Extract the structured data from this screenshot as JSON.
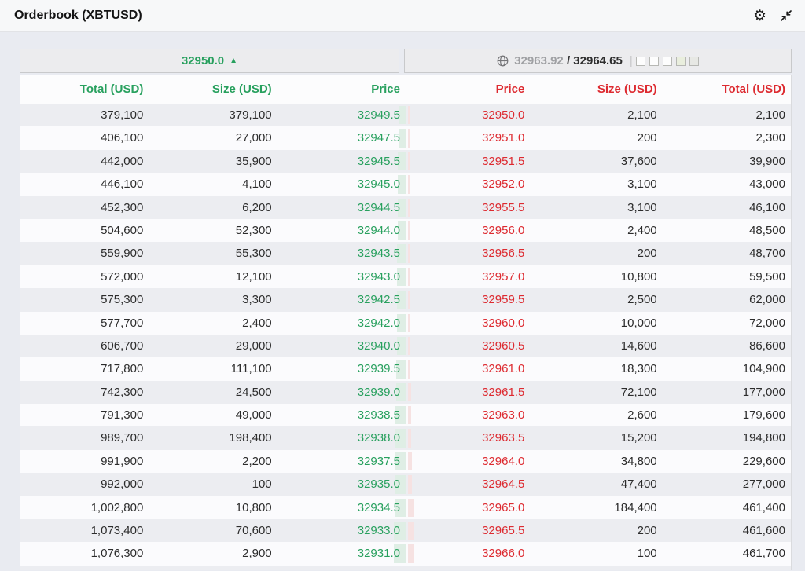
{
  "window": {
    "title": "Orderbook (XBTUSD)"
  },
  "toolbar": {
    "settings_icon": "gear",
    "collapse_icon": "compress-arrows"
  },
  "ticker": {
    "last_price": "32950.0",
    "last_direction": "up",
    "up_arrow_glyph": "▲",
    "globe_icon": "globe",
    "secondary_price": "32963.92",
    "slash": "/",
    "primary_price": "32964.65",
    "separator": "|",
    "depth_boxes": [
      "empty",
      "empty",
      "empty",
      "tint-green",
      "tint-gray"
    ]
  },
  "colors": {
    "bid_green": "#28a05e",
    "ask_red": "#dd2a30",
    "bid_bar": "#dfeee5",
    "ask_bar": "#f6e2e2",
    "row_stripe": "#ecedf1"
  },
  "orderbook": {
    "bid_headers": [
      "Total (USD)",
      "Size (USD)",
      "Price"
    ],
    "ask_headers": [
      "Price",
      "Size (USD)",
      "Total (USD)"
    ],
    "bids": [
      {
        "total": "379,100",
        "size": "379,100",
        "price": "32949.5"
      },
      {
        "total": "406,100",
        "size": "27,000",
        "price": "32947.5"
      },
      {
        "total": "442,000",
        "size": "35,900",
        "price": "32945.5"
      },
      {
        "total": "446,100",
        "size": "4,100",
        "price": "32945.0"
      },
      {
        "total": "452,300",
        "size": "6,200",
        "price": "32944.5"
      },
      {
        "total": "504,600",
        "size": "52,300",
        "price": "32944.0"
      },
      {
        "total": "559,900",
        "size": "55,300",
        "price": "32943.5"
      },
      {
        "total": "572,000",
        "size": "12,100",
        "price": "32943.0"
      },
      {
        "total": "575,300",
        "size": "3,300",
        "price": "32942.5"
      },
      {
        "total": "577,700",
        "size": "2,400",
        "price": "32942.0"
      },
      {
        "total": "606,700",
        "size": "29,000",
        "price": "32940.0"
      },
      {
        "total": "717,800",
        "size": "111,100",
        "price": "32939.5"
      },
      {
        "total": "742,300",
        "size": "24,500",
        "price": "32939.0"
      },
      {
        "total": "791,300",
        "size": "49,000",
        "price": "32938.5"
      },
      {
        "total": "989,700",
        "size": "198,400",
        "price": "32938.0"
      },
      {
        "total": "991,900",
        "size": "2,200",
        "price": "32937.5"
      },
      {
        "total": "992,000",
        "size": "100",
        "price": "32935.0"
      },
      {
        "total": "1,002,800",
        "size": "10,800",
        "price": "32934.5"
      },
      {
        "total": "1,073,400",
        "size": "70,600",
        "price": "32933.0"
      },
      {
        "total": "1,076,300",
        "size": "2,900",
        "price": "32931.0"
      }
    ],
    "asks": [
      {
        "price": "32950.0",
        "size": "2,100",
        "total": "2,100"
      },
      {
        "price": "32951.0",
        "size": "200",
        "total": "2,300"
      },
      {
        "price": "32951.5",
        "size": "37,600",
        "total": "39,900"
      },
      {
        "price": "32952.0",
        "size": "3,100",
        "total": "43,000"
      },
      {
        "price": "32955.5",
        "size": "3,100",
        "total": "46,100"
      },
      {
        "price": "32956.0",
        "size": "2,400",
        "total": "48,500"
      },
      {
        "price": "32956.5",
        "size": "200",
        "total": "48,700"
      },
      {
        "price": "32957.0",
        "size": "10,800",
        "total": "59,500"
      },
      {
        "price": "32959.5",
        "size": "2,500",
        "total": "62,000"
      },
      {
        "price": "32960.0",
        "size": "10,000",
        "total": "72,000"
      },
      {
        "price": "32960.5",
        "size": "14,600",
        "total": "86,600"
      },
      {
        "price": "32961.0",
        "size": "18,300",
        "total": "104,900"
      },
      {
        "price": "32961.5",
        "size": "72,100",
        "total": "177,000"
      },
      {
        "price": "32963.0",
        "size": "2,600",
        "total": "179,600"
      },
      {
        "price": "32963.5",
        "size": "15,200",
        "total": "194,800"
      },
      {
        "price": "32964.0",
        "size": "34,800",
        "total": "229,600"
      },
      {
        "price": "32964.5",
        "size": "47,400",
        "total": "277,000"
      },
      {
        "price": "32965.0",
        "size": "184,400",
        "total": "461,400"
      },
      {
        "price": "32965.5",
        "size": "200",
        "total": "461,600"
      },
      {
        "price": "32966.0",
        "size": "100",
        "total": "461,700"
      }
    ]
  }
}
